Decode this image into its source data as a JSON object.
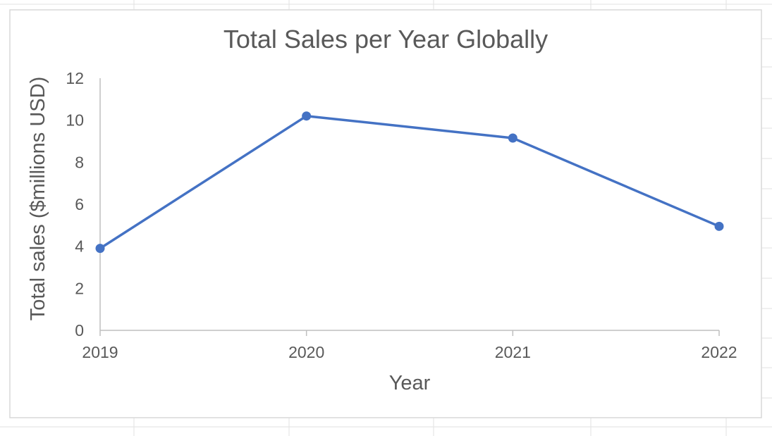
{
  "chart_data": {
    "type": "line",
    "title": "Total Sales per Year Globally",
    "xlabel": "Year",
    "ylabel": "Total sales ($millions USD)",
    "categories": [
      "2019",
      "2020",
      "2021",
      "2022"
    ],
    "series": [
      {
        "values": [
          3.9,
          10.2,
          9.15,
          4.95
        ]
      }
    ],
    "ylim": [
      0,
      12
    ],
    "yticks": [
      0,
      2,
      4,
      6,
      8,
      10,
      12
    ],
    "grid": false,
    "legend": "none",
    "colors": {
      "series": "#4472c4",
      "text": "#595959",
      "axis": "#bfbfbf"
    }
  }
}
